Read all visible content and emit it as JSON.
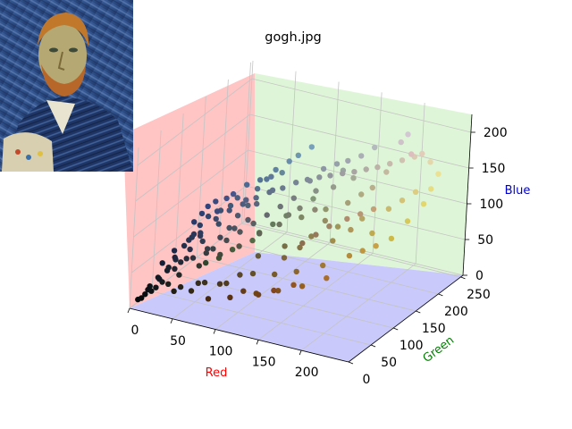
{
  "chart_data": {
    "type": "scatter",
    "title": "gogh.jpg",
    "xlabel": "Red",
    "ylabel": "Green",
    "zlabel": "Blue",
    "xlim": [
      0,
      255
    ],
    "ylim": [
      0,
      255
    ],
    "zlim": [
      0,
      225
    ],
    "xticks": [
      0,
      50,
      100,
      150,
      200
    ],
    "yticks": [
      0,
      50,
      100,
      150,
      200,
      250
    ],
    "zticks": [
      0,
      50,
      100,
      150,
      200
    ],
    "grid": true,
    "point_color": "each point is coloured by its own (Red, Green, Blue) value",
    "inset_image": "van-gogh-self-portrait",
    "pane_colors": {
      "red_pane": "#ffc4c4",
      "green_pane": "#dff5d8",
      "blue_pane": "#c9c9fb"
    },
    "label_colors": {
      "x": "#ff0000",
      "y": "#008000",
      "z": "#0000cd"
    },
    "points": [
      [
        12,
        20,
        25
      ],
      [
        18,
        26,
        36
      ],
      [
        25,
        35,
        48
      ],
      [
        30,
        38,
        62
      ],
      [
        35,
        48,
        75
      ],
      [
        42,
        55,
        90
      ],
      [
        20,
        30,
        55
      ],
      [
        28,
        40,
        70
      ],
      [
        40,
        55,
        85
      ],
      [
        15,
        18,
        20
      ],
      [
        10,
        14,
        16
      ],
      [
        22,
        28,
        30
      ],
      [
        45,
        62,
        100
      ],
      [
        50,
        70,
        110
      ],
      [
        38,
        52,
        82
      ],
      [
        55,
        60,
        65
      ],
      [
        48,
        58,
        92
      ],
      [
        60,
        75,
        100
      ],
      [
        70,
        80,
        95
      ],
      [
        65,
        90,
        120
      ],
      [
        58,
        82,
        115
      ],
      [
        75,
        88,
        110
      ],
      [
        80,
        100,
        120
      ],
      [
        85,
        110,
        140
      ],
      [
        90,
        120,
        150
      ],
      [
        95,
        130,
        160
      ],
      [
        100,
        135,
        155
      ],
      [
        105,
        140,
        170
      ],
      [
        110,
        150,
        175
      ],
      [
        120,
        160,
        185
      ],
      [
        60,
        50,
        30
      ],
      [
        80,
        60,
        30
      ],
      [
        100,
        80,
        40
      ],
      [
        120,
        90,
        40
      ],
      [
        140,
        100,
        45
      ],
      [
        160,
        120,
        50
      ],
      [
        110,
        70,
        20
      ],
      [
        130,
        80,
        25
      ],
      [
        150,
        95,
        30
      ],
      [
        170,
        110,
        40
      ],
      [
        90,
        70,
        40
      ],
      [
        75,
        55,
        30
      ],
      [
        55,
        45,
        30
      ],
      [
        35,
        30,
        20
      ],
      [
        100,
        90,
        60
      ],
      [
        120,
        110,
        70
      ],
      [
        140,
        130,
        80
      ],
      [
        160,
        150,
        90
      ],
      [
        180,
        165,
        100
      ],
      [
        200,
        185,
        110
      ],
      [
        210,
        195,
        120
      ],
      [
        220,
        205,
        130
      ],
      [
        190,
        170,
        80
      ],
      [
        205,
        185,
        70
      ],
      [
        215,
        200,
        90
      ],
      [
        225,
        215,
        110
      ],
      [
        230,
        220,
        130
      ],
      [
        235,
        225,
        150
      ],
      [
        230,
        215,
        170
      ],
      [
        225,
        205,
        185
      ],
      [
        220,
        190,
        190
      ],
      [
        205,
        195,
        200
      ],
      [
        210,
        200,
        210
      ],
      [
        170,
        175,
        180
      ],
      [
        180,
        185,
        190
      ],
      [
        150,
        160,
        170
      ],
      [
        130,
        140,
        150
      ],
      [
        140,
        150,
        165
      ],
      [
        160,
        165,
        175
      ],
      [
        130,
        150,
        120
      ],
      [
        110,
        130,
        100
      ],
      [
        90,
        110,
        80
      ],
      [
        70,
        90,
        60
      ],
      [
        50,
        70,
        45
      ],
      [
        60,
        80,
        50
      ],
      [
        85,
        105,
        70
      ],
      [
        100,
        120,
        90
      ],
      [
        115,
        125,
        105
      ],
      [
        125,
        135,
        100
      ],
      [
        145,
        150,
        110
      ],
      [
        165,
        160,
        120
      ],
      [
        175,
        170,
        130
      ],
      [
        185,
        175,
        140
      ],
      [
        195,
        185,
        160
      ],
      [
        60,
        65,
        70
      ],
      [
        70,
        75,
        80
      ],
      [
        80,
        85,
        90
      ],
      [
        90,
        95,
        100
      ],
      [
        100,
        105,
        110
      ],
      [
        110,
        115,
        120
      ],
      [
        40,
        45,
        60
      ],
      [
        50,
        60,
        80
      ],
      [
        30,
        40,
        58
      ],
      [
        25,
        32,
        45
      ],
      [
        20,
        25,
        35
      ],
      [
        35,
        42,
        55
      ],
      [
        45,
        50,
        60
      ],
      [
        55,
        62,
        70
      ],
      [
        65,
        70,
        85
      ],
      [
        75,
        82,
        95
      ],
      [
        85,
        92,
        105
      ],
      [
        140,
        110,
        80
      ],
      [
        150,
        120,
        90
      ],
      [
        160,
        130,
        100
      ],
      [
        175,
        140,
        110
      ],
      [
        185,
        150,
        115
      ],
      [
        195,
        160,
        120
      ],
      [
        100,
        60,
        25
      ],
      [
        115,
        65,
        22
      ],
      [
        90,
        50,
        18
      ],
      [
        70,
        40,
        15
      ],
      [
        130,
        70,
        30
      ],
      [
        145,
        85,
        35
      ],
      [
        125,
        100,
        60
      ],
      [
        135,
        115,
        70
      ],
      [
        60,
        70,
        120
      ],
      [
        70,
        85,
        140
      ],
      [
        55,
        75,
        130
      ],
      [
        45,
        65,
        115
      ],
      [
        40,
        58,
        105
      ],
      [
        50,
        68,
        125
      ],
      [
        65,
        80,
        135
      ],
      [
        80,
        95,
        130
      ],
      [
        90,
        100,
        125
      ],
      [
        50,
        40,
        20
      ],
      [
        40,
        35,
        25
      ],
      [
        180,
        140,
        60
      ],
      [
        190,
        150,
        65
      ],
      [
        200,
        160,
        70
      ],
      [
        175,
        150,
        90
      ],
      [
        160,
        140,
        75
      ],
      [
        150,
        140,
        100
      ],
      [
        140,
        135,
        115
      ],
      [
        120,
        125,
        130
      ],
      [
        100,
        115,
        140
      ],
      [
        95,
        120,
        155
      ],
      [
        85,
        115,
        150
      ],
      [
        75,
        105,
        145
      ],
      [
        70,
        95,
        130
      ],
      [
        150,
        155,
        140
      ],
      [
        165,
        170,
        150
      ],
      [
        155,
        165,
        160
      ],
      [
        135,
        145,
        135
      ],
      [
        125,
        130,
        115
      ],
      [
        110,
        115,
        95
      ],
      [
        95,
        100,
        85
      ],
      [
        80,
        85,
        70
      ],
      [
        65,
        72,
        60
      ],
      [
        50,
        55,
        48
      ],
      [
        35,
        40,
        38
      ],
      [
        28,
        30,
        28
      ],
      [
        18,
        22,
        24
      ],
      [
        8,
        10,
        12
      ],
      [
        5,
        8,
        10
      ],
      [
        12,
        16,
        22
      ],
      [
        32,
        35,
        48
      ],
      [
        42,
        48,
        72
      ],
      [
        48,
        58,
        88
      ],
      [
        58,
        72,
        108
      ],
      [
        68,
        82,
        118
      ],
      [
        78,
        92,
        125
      ],
      [
        88,
        102,
        132
      ],
      [
        98,
        112,
        138
      ],
      [
        108,
        122,
        142
      ],
      [
        118,
        132,
        148
      ],
      [
        128,
        138,
        152
      ],
      [
        138,
        145,
        155
      ],
      [
        148,
        150,
        158
      ],
      [
        158,
        158,
        160
      ],
      [
        168,
        165,
        162
      ],
      [
        178,
        172,
        165
      ],
      [
        188,
        178,
        168
      ],
      [
        198,
        186,
        172
      ],
      [
        208,
        194,
        176
      ],
      [
        218,
        202,
        180
      ]
    ]
  }
}
